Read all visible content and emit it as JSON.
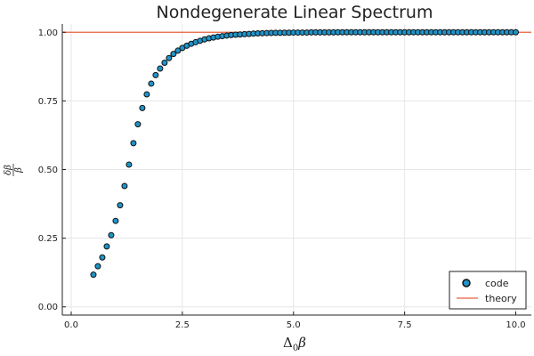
{
  "chart_data": {
    "type": "scatter",
    "title": "Nondegenerate Linear Spectrum",
    "xlabel": "Δ₀β",
    "ylabel": "δβ/β",
    "xlim": [
      -0.2,
      10.35
    ],
    "ylim": [
      -0.03,
      1.03
    ],
    "xticks": [
      0,
      2.5,
      5,
      7.5,
      10
    ],
    "xtick_labels": [
      "0.0",
      "2.5",
      "5.0",
      "7.5",
      "10.0"
    ],
    "yticks": [
      0,
      0.25,
      0.5,
      0.75,
      1
    ],
    "ytick_labels": [
      "0.00",
      "0.25",
      "0.50",
      "0.75",
      "1.00"
    ],
    "grid": true,
    "legend_position": "bottom-right",
    "series": [
      {
        "name": "code",
        "kind": "scatter",
        "color": "#1f94c9",
        "x": [
          0.5,
          0.6,
          0.7,
          0.8,
          0.9,
          1.0,
          1.1,
          1.2,
          1.3,
          1.4,
          1.5,
          1.6,
          1.7,
          1.8,
          1.9,
          2.0,
          2.1,
          2.2,
          2.3,
          2.4,
          2.5,
          2.6,
          2.7,
          2.8,
          2.9,
          3.0,
          3.1,
          3.2,
          3.3,
          3.4,
          3.5,
          3.6,
          3.7,
          3.8,
          3.9,
          4.0,
          4.1,
          4.2,
          4.3,
          4.4,
          4.5,
          4.6,
          4.7,
          4.8,
          4.9,
          5.0,
          5.1,
          5.2,
          5.3,
          5.4,
          5.5,
          5.6,
          5.7,
          5.8,
          5.9,
          6.0,
          6.1,
          6.2,
          6.3,
          6.4,
          6.5,
          6.6,
          6.7,
          6.8,
          6.9,
          7.0,
          7.1,
          7.2,
          7.3,
          7.4,
          7.5,
          7.6,
          7.7,
          7.8,
          7.9,
          8.0,
          8.1,
          8.2,
          8.3,
          8.4,
          8.5,
          8.6,
          8.7,
          8.8,
          8.9,
          9.0,
          9.1,
          9.2,
          9.3,
          9.4,
          9.5,
          9.6,
          9.7,
          9.8,
          9.9,
          10.0
        ],
        "y": [
          0.117,
          0.148,
          0.18,
          0.22,
          0.261,
          0.313,
          0.37,
          0.44,
          0.518,
          0.596,
          0.665,
          0.724,
          0.774,
          0.813,
          0.844,
          0.868,
          0.889,
          0.906,
          0.921,
          0.933,
          0.943,
          0.951,
          0.958,
          0.964,
          0.969,
          0.974,
          0.978,
          0.981,
          0.984,
          0.986,
          0.988,
          0.99,
          0.991,
          0.992,
          0.993,
          0.994,
          0.995,
          0.996,
          0.9965,
          0.997,
          0.9975,
          0.998,
          0.998,
          0.9985,
          0.9985,
          0.999,
          0.999,
          0.999,
          0.999,
          0.9995,
          0.9995,
          0.9995,
          0.9995,
          0.9995,
          0.9995,
          1.0,
          1.0,
          1.0,
          1.0,
          1.0,
          1.0,
          1.0,
          1.0,
          1.0,
          1.0,
          1.0,
          1.0,
          1.0,
          1.0,
          1.0,
          1.0,
          1.0,
          1.0,
          1.0,
          1.0,
          1.0,
          1.0,
          1.0,
          1.0,
          1.0,
          1.0,
          1.0,
          1.0,
          1.0,
          1.0,
          1.0,
          1.0,
          1.0,
          1.0,
          1.0,
          1.0,
          1.0,
          1.0,
          1.0,
          1.0,
          1.0
        ]
      },
      {
        "name": "theory",
        "kind": "hline",
        "color": "#e8613e",
        "y": 1.0
      }
    ]
  }
}
